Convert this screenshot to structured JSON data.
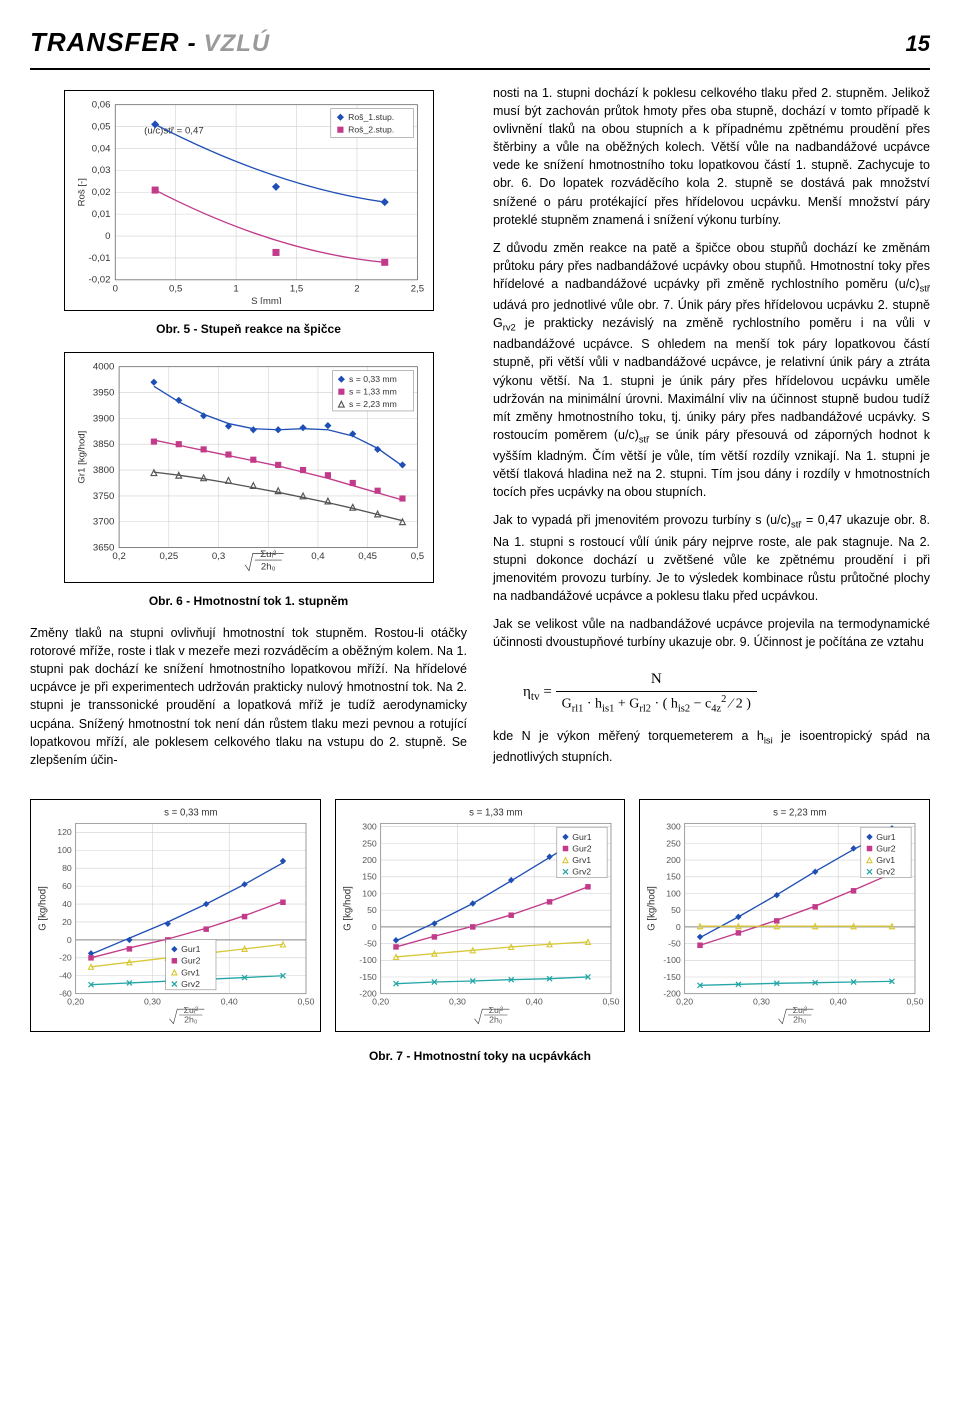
{
  "header": {
    "t1": "TRANSFER",
    "dash": "-",
    "t2": "VZLÚ",
    "t2_color": "#9a9a9a",
    "pagenum": "15"
  },
  "fig5": {
    "type": "line",
    "annotation": "(u/c)stř = 0,47",
    "xlabel": "S [mm]",
    "ylabel": "Roš [-]",
    "xlim": [
      0,
      2.5
    ],
    "xtick_step": 0.5,
    "ylim": [
      -0.02,
      0.06
    ],
    "ytick_step": 0.01,
    "xticks": [
      "0",
      "0,5",
      "1",
      "1,5",
      "2",
      "2,5"
    ],
    "yticks": [
      "-0,02",
      "-0,01",
      "0",
      "0,01",
      "0,02",
      "0,03",
      "0,04",
      "0,05",
      "0,06"
    ],
    "series": [
      {
        "name": "Roš_1.stup.",
        "color": "#1f4fb5",
        "marker": "diamond",
        "x": [
          0.33,
          1.33,
          2.23
        ],
        "y": [
          0.051,
          0.0225,
          0.0155
        ]
      },
      {
        "name": "Roš_2.stup.",
        "color": "#c23b8a",
        "marker": "square",
        "x": [
          0.33,
          1.33,
          2.23
        ],
        "y": [
          0.021,
          -0.0075,
          -0.012
        ]
      }
    ],
    "caption": "Obr. 5 - Stupeň reakce na špičce",
    "background": "#ffffff",
    "grid_color": "#d0d0d0",
    "border_color": "#000000"
  },
  "fig6": {
    "type": "scatter-line",
    "xlabel_frac": {
      "num": "Σuᵢ²",
      "den": "2h₀"
    },
    "ylabel": "Gr1 [kg/hod]",
    "xlim": [
      0.2,
      0.5
    ],
    "xtick_step": 0.05,
    "xticks": [
      "0,2",
      "0,25",
      "0,3",
      "",
      "0,4",
      "0,45",
      "0,5"
    ],
    "ylim": [
      3650,
      4000
    ],
    "ytick_step": 50,
    "yticks": [
      "3650",
      "3700",
      "3750",
      "3800",
      "3850",
      "3900",
      "3950",
      "4000"
    ],
    "series": [
      {
        "name": "s = 0,33 mm",
        "color": "#1f4fb5",
        "marker": "diamond",
        "x": [
          0.235,
          0.26,
          0.285,
          0.31,
          0.335,
          0.36,
          0.385,
          0.41,
          0.435,
          0.46,
          0.485
        ],
        "y": [
          3970,
          3935,
          3905,
          3885,
          3878,
          3878,
          3882,
          3886,
          3870,
          3840,
          3810
        ],
        "fit_y": [
          3962,
          3932,
          3908,
          3890,
          3880,
          3878,
          3880,
          3878,
          3866,
          3842,
          3808
        ]
      },
      {
        "name": "s = 1,33 mm",
        "color": "#c23b8a",
        "marker": "square",
        "x": [
          0.235,
          0.26,
          0.285,
          0.31,
          0.335,
          0.36,
          0.385,
          0.41,
          0.435,
          0.46,
          0.485
        ],
        "y": [
          3855,
          3850,
          3840,
          3830,
          3820,
          3810,
          3800,
          3790,
          3775,
          3760,
          3745
        ],
        "fit_y": [
          3858,
          3848,
          3838,
          3828,
          3818,
          3808,
          3796,
          3784,
          3770,
          3756,
          3742
        ]
      },
      {
        "name": "s = 2,23 mm",
        "color": "#555555",
        "marker": "triangle",
        "x": [
          0.235,
          0.26,
          0.285,
          0.31,
          0.335,
          0.36,
          0.385,
          0.41,
          0.435,
          0.46,
          0.485
        ],
        "y": [
          3795,
          3790,
          3785,
          3780,
          3770,
          3760,
          3750,
          3740,
          3728,
          3715,
          3700
        ],
        "fit_y": [
          3796,
          3790,
          3783,
          3775,
          3766,
          3757,
          3747,
          3737,
          3726,
          3714,
          3702
        ]
      }
    ],
    "caption": "Obr. 6 - Hmotnostní tok 1. stupněm",
    "background": "#ffffff",
    "grid_color": "#d0d0d0",
    "border_color": "#000000"
  },
  "left_para1": "Změny tlaků na stupni ovlivňují hmotnostní tok stupněm. Rostou-li otáčky rotorové mříže, roste i tlak v mezeře mezi rozváděcím a oběžným kolem. Na 1. stupni pak dochází ke snížení hmotnostního lopatkovou mříží. Na hřídelové ucpávce je při experimentech udržován prakticky nulový hmotnostní tok. Na 2. stupni je transsonické proudění a lopatková mříž je tudíž aerodynamicky ucpána. Snížený hmotnostní tok není dán růstem tlaku mezi pevnou a rotující lopatkovou mříží, ale poklesem celkového tlaku na vstupu do 2. stupně. Se zlepšením účin-",
  "right_para1": "nosti na 1. stupni dochází k poklesu celkového tlaku před 2. stupněm. Jelikož musí být zachován průtok hmoty přes oba stupně, dochází v tomto případě k ovlivnění tlaků na obou stupních a k případnému zpětnému proudění přes štěrbiny a vůle na oběžných kolech. Větší vůle na nadbandážové ucpávce vede ke snížení hmotnostního toku lopatkovou částí 1. stupně. Zachycuje to obr. 6. Do lopatek rozváděcího kola 2. stupně se dostává pak množství snížené o páru protékající přes hřídelovou ucpávku. Menší množství páry proteklé stupněm znamená i snížení výkonu turbíny.",
  "right_para2_parts": {
    "a": "Z důvodu změn reakce na patě a špičce obou stupňů dochází ke změnám průtoku páry přes nadbandážové ucpávky obou stupňů. Hmotnostní toky přes hřídelové a nadbandážové ucpávky při změně rychlostního poměru (u/c)",
    "sub1": "stř",
    "b": " udává pro jednotlivé vůle obr. 7. Únik páry přes hřídelovou ucpávku 2. stupně G",
    "sub2": "rv2",
    "c": " je prakticky nezávislý na změně rychlostního poměru i na vůli v nadbandážové ucpávce. S ohledem na menší tok páry lopatkovou částí stupně, při větší vůli v nadbandážové ucpávce, je relativní únik páry a ztráta výkonu větší. Na 1. stupni je únik páry přes hřídelovou ucpávku uměle udržován na minimální úrovni. Maximální vliv na účinnost stupně budou tudíž mít změny hmotnostního toku, tj. úniky páry přes nadbandážové ucpávky. S rostoucím poměrem (u/c)",
    "sub3": "stř",
    "d": " se únik páry přesouvá od záporných hodnot k vyšším kladným. Čím větší je vůle, tím větší rozdíly vznikají. Na 1. stupni je větší tlaková hladina než na 2. stupni. Tím jsou dány i rozdíly v hmotnostních tocích přes ucpávky na obou stupních."
  },
  "right_para3_parts": {
    "a": "Jak to vypadá při jmenovitém provozu turbíny s (u/c)",
    "sub1": "stř",
    "b": " = 0,47 ukazuje obr. 8. Na 1. stupni s rostoucí vůlí únik páry nejprve roste, ale pak stagnuje. Na 2. stupni dokonce dochází u zvětšené vůle ke zpětnému proudění i při jmenovitém provozu turbíny. Je to výsledek kombinace růstu průtočné plochy na nadbandážové ucpávce a poklesu tlaku před ucpávkou."
  },
  "right_para4": "Jak se velikost vůle na nadbandážové ucpávce projevila na termodynamické účinnosti dvoustupňové turbíny ukazuje obr. 9. Účinnost je počítána ze vztahu",
  "eq": {
    "lhs": "ηtv",
    "num": "N",
    "den_parts": [
      "G",
      "rl1",
      " · h",
      "is1",
      " + G",
      "rl2",
      " · ( h",
      "is2",
      " − ",
      "c",
      "4z",
      "²",
      " / 2 )"
    ]
  },
  "right_para5_parts": {
    "a": "kde N je výkon měřený torquemeterem a h",
    "sub1": "isi",
    "b": " je isoentropický spád na jednotlivých stupních."
  },
  "fig7": {
    "title_s": [
      "s = 0,33 mm",
      "s = 1,33 mm",
      "s = 2,23 mm"
    ],
    "xlabel_frac": {
      "num": "Σuᵢ²",
      "den": "2h₀"
    },
    "ylabel": "G [kg/hod]",
    "xlim": [
      0.2,
      0.5
    ],
    "xticks": [
      "0,20",
      "0,30",
      "0,40",
      "0,50"
    ],
    "legend": [
      "Gur1",
      "Gur2",
      "Grv1",
      "Grv2"
    ],
    "legend_colors": [
      "#1f4fb5",
      "#c23b8a",
      "#d8c83a",
      "#24a6a6"
    ],
    "legend_markers": [
      "diamond",
      "square",
      "triangle",
      "x"
    ],
    "panels": [
      {
        "title": "s = 0,33 mm",
        "ylim": [
          -60,
          130
        ],
        "ytick_step": 20,
        "yticks": [
          "-60",
          "-40",
          "-20",
          "0",
          "20",
          "40",
          "60",
          "80",
          "100",
          "120"
        ],
        "series": [
          {
            "c": "#1f4fb5",
            "m": "diamond",
            "x": [
              0.22,
              0.27,
              0.32,
              0.37,
              0.42,
              0.47
            ],
            "y": [
              -15,
              0,
              18,
              40,
              62,
              88
            ],
            "fit": [
              -16,
              2,
              20,
              40,
              62,
              86
            ]
          },
          {
            "c": "#c23b8a",
            "m": "square",
            "x": [
              0.22,
              0.27,
              0.32,
              0.37,
              0.42,
              0.47
            ],
            "y": [
              -20,
              -10,
              0,
              12,
              26,
              42
            ],
            "fit": [
              -20,
              -9,
              1,
              13,
              27,
              43
            ]
          },
          {
            "c": "#d8c83a",
            "m": "triangle",
            "x": [
              0.22,
              0.27,
              0.32,
              0.37,
              0.42,
              0.47
            ],
            "y": [
              -30,
              -25,
              -20,
              -15,
              -10,
              -5
            ],
            "fit": [
              -30,
              -25,
              -20,
              -15,
              -10,
              -5
            ]
          },
          {
            "c": "#24a6a6",
            "m": "x",
            "x": [
              0.22,
              0.27,
              0.32,
              0.37,
              0.42,
              0.47
            ],
            "y": [
              -50,
              -48,
              -46,
              -44,
              -42,
              -40
            ],
            "fit": [
              -50,
              -48,
              -46,
              -44,
              -42,
              -40
            ]
          }
        ]
      },
      {
        "title": "s = 1,33 mm",
        "ylim": [
          -200,
          310
        ],
        "ytick_step": 50,
        "yticks": [
          "-200",
          "-150",
          "-100",
          "-50",
          "0",
          "50",
          "100",
          "150",
          "200",
          "250",
          "300"
        ],
        "series": [
          {
            "c": "#1f4fb5",
            "m": "diamond",
            "x": [
              0.22,
              0.27,
              0.32,
              0.37,
              0.42,
              0.47
            ],
            "y": [
              -40,
              10,
              70,
              140,
              210,
              280
            ],
            "fit": [
              -42,
              12,
              70,
              138,
              208,
              278
            ]
          },
          {
            "c": "#c23b8a",
            "m": "square",
            "x": [
              0.22,
              0.27,
              0.32,
              0.37,
              0.42,
              0.47
            ],
            "y": [
              -60,
              -30,
              0,
              35,
              75,
              120
            ],
            "fit": [
              -60,
              -28,
              2,
              36,
              76,
              120
            ]
          },
          {
            "c": "#d8c83a",
            "m": "triangle",
            "x": [
              0.22,
              0.27,
              0.32,
              0.37,
              0.42,
              0.47
            ],
            "y": [
              -90,
              -80,
              -70,
              -60,
              -52,
              -45
            ],
            "fit": [
              -90,
              -80,
              -70,
              -60,
              -52,
              -45
            ]
          },
          {
            "c": "#24a6a6",
            "m": "x",
            "x": [
              0.22,
              0.27,
              0.32,
              0.37,
              0.42,
              0.47
            ],
            "y": [
              -170,
              -165,
              -162,
              -158,
              -155,
              -150
            ],
            "fit": [
              -170,
              -165,
              -162,
              -158,
              -155,
              -150
            ]
          }
        ]
      },
      {
        "title": "s = 2,23 mm",
        "ylim": [
          -200,
          310
        ],
        "ytick_step": 50,
        "yticks": [
          "-200",
          "-150",
          "-100",
          "-50",
          "0",
          "50",
          "100",
          "150",
          "200",
          "250",
          "300"
        ],
        "series": [
          {
            "c": "#1f4fb5",
            "m": "diamond",
            "x": [
              0.22,
              0.27,
              0.32,
              0.37,
              0.42,
              0.47
            ],
            "y": [
              -30,
              30,
              95,
              165,
              235,
              295
            ],
            "fit": [
              -32,
              30,
              96,
              166,
              232,
              292
            ]
          },
          {
            "c": "#c23b8a",
            "m": "square",
            "x": [
              0.22,
              0.27,
              0.32,
              0.37,
              0.42,
              0.47
            ],
            "y": [
              -55,
              -18,
              18,
              60,
              108,
              160
            ],
            "fit": [
              -55,
              -18,
              20,
              62,
              110,
              160
            ]
          },
          {
            "c": "#d8c83a",
            "m": "triangle",
            "x": [
              0.22,
              0.27,
              0.32,
              0.37,
              0.42,
              0.47
            ],
            "y": [
              2,
              2,
              2,
              2,
              2,
              2
            ],
            "fit": [
              2,
              2,
              2,
              2,
              2,
              2
            ]
          },
          {
            "c": "#24a6a6",
            "m": "x",
            "x": [
              0.22,
              0.27,
              0.32,
              0.37,
              0.42,
              0.47
            ],
            "y": [
              -175,
              -172,
              -169,
              -167,
              -165,
              -163
            ],
            "fit": [
              -175,
              -172,
              -169,
              -167,
              -165,
              -163
            ]
          }
        ]
      }
    ],
    "caption": "Obr. 7 - Hmotnostní toky na ucpávkách",
    "border_color": "#888888"
  }
}
